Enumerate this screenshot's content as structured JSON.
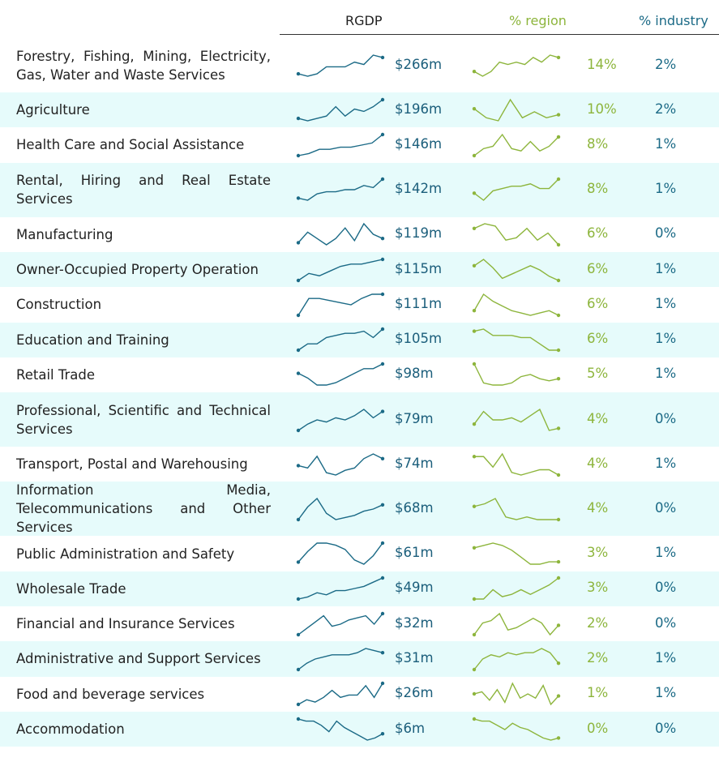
{
  "header": {
    "rgdp": "RGDP",
    "region": "% region",
    "industry": "% industry"
  },
  "rows": [
    {
      "label": "Forestry, Fishing, Mining, Electricity, Gas, Water and Waste Services",
      "rgdp_trend": [
        2,
        1,
        2,
        5,
        5,
        5,
        7,
        6,
        10,
        9
      ],
      "rgdp": "$266m",
      "region_trend": [
        3,
        1,
        3,
        7,
        6,
        7,
        6,
        9,
        7,
        10,
        9
      ],
      "region": "14%",
      "industry": "2%"
    },
    {
      "label": "Agriculture",
      "rgdp_trend": [
        1,
        0,
        1,
        2,
        6,
        2,
        5,
        4,
        6,
        9
      ],
      "rgdp": "$196m",
      "region_trend": [
        6,
        3,
        2,
        9,
        3,
        5,
        3,
        4
      ],
      "region": "10%",
      "industry": "2%"
    },
    {
      "label": "Health Care and Social Assistance",
      "rgdp_trend": [
        0,
        1,
        3,
        3,
        4,
        4,
        5,
        6,
        10
      ],
      "rgdp": "$146m",
      "region_trend": [
        1,
        4,
        5,
        10,
        4,
        3,
        7,
        3,
        5,
        9
      ],
      "region": "8%",
      "industry": "1%"
    },
    {
      "label": "Rental, Hiring and Real Estate Services",
      "rgdp_trend": [
        1,
        0,
        3,
        4,
        4,
        5,
        5,
        7,
        6,
        10
      ],
      "rgdp": "$142m",
      "region_trend": [
        4,
        1,
        5,
        6,
        7,
        7,
        8,
        6,
        6,
        10
      ],
      "region": "8%",
      "industry": "1%"
    },
    {
      "label": "Manufacturing",
      "rgdp_trend": [
        1,
        6,
        3,
        0,
        3,
        8,
        2,
        10,
        5,
        3
      ],
      "rgdp": "$119m",
      "region_trend": [
        8,
        10,
        9,
        3,
        4,
        8,
        3,
        6,
        1
      ],
      "region": "6%",
      "industry": "0%"
    },
    {
      "label": "Owner-Occupied Property Operation",
      "rgdp_trend": [
        1,
        4,
        3,
        5,
        7,
        8,
        8,
        9,
        10
      ],
      "rgdp": "$115m",
      "region_trend": [
        7,
        10,
        6,
        1,
        3,
        5,
        7,
        5,
        2,
        0
      ],
      "region": "6%",
      "industry": "1%"
    },
    {
      "label": "Construction",
      "rgdp_trend": [
        0,
        8,
        8,
        7,
        6,
        5,
        8,
        10,
        10
      ],
      "rgdp": "$111m",
      "region_trend": [
        3,
        10,
        7,
        5,
        3,
        2,
        1,
        2,
        3,
        1
      ],
      "region": "6%",
      "industry": "1%"
    },
    {
      "label": "Education and Training",
      "rgdp_trend": [
        0,
        3,
        3,
        6,
        7,
        8,
        8,
        9,
        6,
        10
      ],
      "rgdp": "$105m",
      "region_trend": [
        9,
        10,
        7,
        7,
        7,
        6,
        6,
        3,
        0,
        0
      ],
      "region": "6%",
      "industry": "1%"
    },
    {
      "label": "Retail Trade",
      "rgdp_trend": [
        6,
        4,
        1,
        1,
        2,
        4,
        6,
        8,
        8,
        10
      ],
      "rgdp": "$98m",
      "region_trend": [
        10,
        1,
        0,
        0,
        1,
        4,
        5,
        3,
        2,
        3
      ],
      "region": "5%",
      "industry": "1%"
    },
    {
      "label": "Professional, Scientific and Technical Services",
      "rgdp_trend": [
        0,
        3,
        5,
        4,
        6,
        5,
        7,
        10,
        6,
        9
      ],
      "rgdp": "$79m",
      "region_trend": [
        3,
        9,
        5,
        5,
        6,
        4,
        7,
        10,
        0,
        1
      ],
      "region": "4%",
      "industry": "0%"
    },
    {
      "label": "Transport, Postal and Warehousing",
      "rgdp_trend": [
        5,
        4,
        9,
        2,
        1,
        3,
        4,
        8,
        10,
        8
      ],
      "rgdp": "$74m",
      "region_trend": [
        9,
        9,
        5,
        10,
        3,
        2,
        3,
        4,
        4,
        2
      ],
      "region": "4%",
      "industry": "1%"
    },
    {
      "label": "Information Media, Telecommunications and Other Services",
      "rgdp_trend": [
        0,
        6,
        10,
        3,
        0,
        1,
        2,
        4,
        5,
        7
      ],
      "rgdp": "$68m",
      "region_trend": [
        7,
        8,
        10,
        3,
        2,
        3,
        2,
        2,
        2
      ],
      "region": "4%",
      "industry": "0%"
    },
    {
      "label": "Public Administration and Safety",
      "rgdp_trend": [
        1,
        6,
        10,
        10,
        9,
        7,
        2,
        0,
        4,
        10
      ],
      "rgdp": "$61m",
      "region_trend": [
        8,
        9,
        10,
        9,
        7,
        4,
        1,
        1,
        2,
        2
      ],
      "region": "3%",
      "industry": "1%"
    },
    {
      "label": "Wholesale Trade",
      "rgdp_trend": [
        0,
        1,
        3,
        2,
        4,
        4,
        5,
        6,
        8,
        10
      ],
      "rgdp": "$49m",
      "region_trend": [
        1,
        1,
        5,
        2,
        3,
        5,
        3,
        5,
        7,
        10
      ],
      "region": "3%",
      "industry": "0%"
    },
    {
      "label": "Financial and Insurance Services",
      "rgdp_trend": [
        0,
        3,
        6,
        9,
        4,
        5,
        7,
        8,
        9,
        5,
        10
      ],
      "rgdp": "$32m",
      "region_trend": [
        1,
        6,
        7,
        10,
        3,
        4,
        6,
        8,
        6,
        1,
        5
      ],
      "region": "2%",
      "industry": "0%"
    },
    {
      "label": "Administrative and Support Services",
      "rgdp_trend": [
        0,
        3,
        5,
        6,
        7,
        7,
        7,
        8,
        10,
        9,
        8
      ],
      "rgdp": "$31m",
      "region_trend": [
        0,
        5,
        7,
        6,
        8,
        7,
        8,
        8,
        10,
        8,
        3
      ],
      "region": "2%",
      "industry": "1%"
    },
    {
      "label": "Food and beverage services",
      "rgdp_trend": [
        1,
        3,
        2,
        4,
        7,
        4,
        5,
        5,
        9,
        4,
        10
      ],
      "rgdp": "$26m",
      "region_trend": [
        5,
        6,
        2,
        7,
        1,
        10,
        3,
        5,
        3,
        9,
        0,
        4
      ],
      "region": "1%",
      "industry": "1%"
    },
    {
      "label": "Accommodation",
      "rgdp_trend": [
        10,
        9,
        9,
        7,
        4,
        9,
        6,
        4,
        2,
        0,
        1,
        3
      ],
      "rgdp": "$6m",
      "region_trend": [
        10,
        9,
        9,
        7,
        5,
        8,
        6,
        5,
        3,
        1,
        0,
        1
      ],
      "region": "0%",
      "industry": "0%"
    }
  ]
}
